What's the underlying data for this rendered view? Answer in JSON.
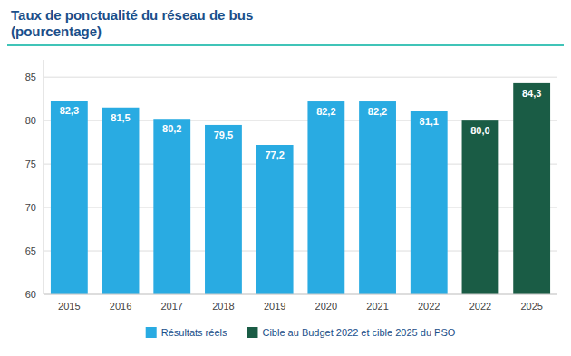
{
  "chart_data": {
    "type": "bar",
    "title": "Taux de ponctualité du réseau de bus\n(pourcentage)",
    "categories": [
      "2015",
      "2016",
      "2017",
      "2018",
      "2019",
      "2020",
      "2021",
      "2022",
      "2022",
      "2025"
    ],
    "series": [
      {
        "name": "Résultats réels",
        "color": "#29ABE2",
        "values": [
          82.3,
          81.5,
          80.2,
          79.5,
          77.2,
          82.2,
          82.2,
          81.1,
          null,
          null
        ],
        "value_labels": [
          "82,3",
          "81,5",
          "80,2",
          "79,5",
          "77,2",
          "82,2",
          "82,2",
          "81,1",
          null,
          null
        ]
      },
      {
        "name": "Cible au Budget 2022 et cible 2025 du PSO",
        "color": "#1A5C45",
        "values": [
          null,
          null,
          null,
          null,
          null,
          null,
          null,
          null,
          80.0,
          84.3
        ],
        "value_labels": [
          null,
          null,
          null,
          null,
          null,
          null,
          null,
          null,
          "80,0",
          "84,3"
        ]
      }
    ],
    "ylim": [
      60,
      87
    ],
    "yticks": [
      60,
      65,
      70,
      75,
      80,
      85
    ],
    "grid": true,
    "legend": "bottom",
    "data_labels": true
  }
}
